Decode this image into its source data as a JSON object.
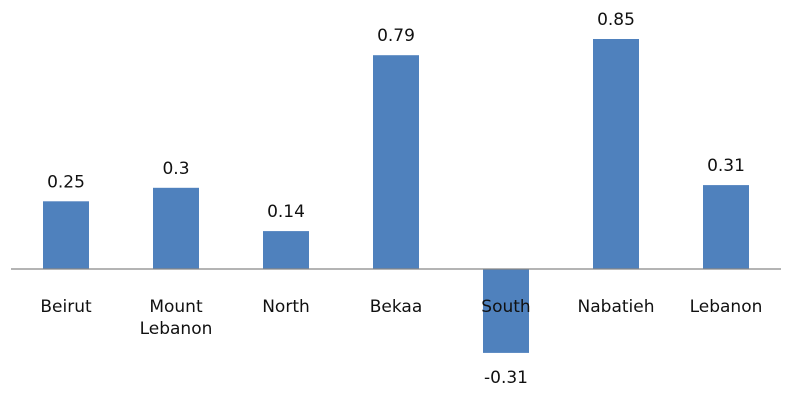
{
  "chart_data": {
    "type": "bar",
    "title": "",
    "xlabel": "",
    "ylabel": "",
    "categories": [
      [
        "Beirut"
      ],
      [
        "Mount",
        "Lebanon"
      ],
      [
        "North"
      ],
      [
        "Bekaa"
      ],
      [
        "South"
      ],
      [
        "Nabatieh"
      ],
      [
        "Lebanon"
      ]
    ],
    "values": [
      0.25,
      0.3,
      0.14,
      0.79,
      -0.31,
      0.85,
      0.31
    ],
    "value_labels": [
      "0.25",
      "0.3",
      "0.14",
      "0.79",
      "-0.31",
      "0.85",
      "0.31"
    ],
    "ylim": [
      -0.31,
      0.85
    ],
    "grid": false,
    "legend": "none",
    "colors": {
      "bar": "#4f81bd",
      "axis": "#868686",
      "text": "#111111"
    }
  }
}
